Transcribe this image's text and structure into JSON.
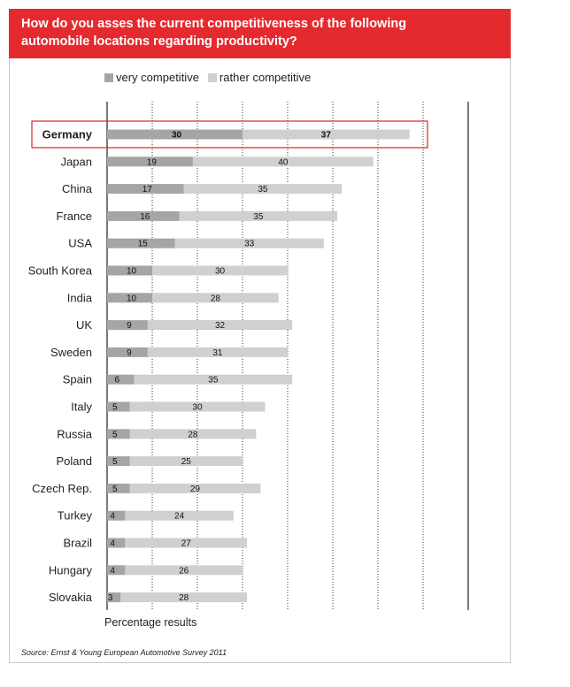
{
  "title_lines": [
    "How do you asses the current competitiveness of the following",
    "automobile locations regarding productivity?"
  ],
  "legend": [
    {
      "label": "very competitive",
      "color": "#a5a5a5"
    },
    {
      "label": "rather competitive",
      "color": "#d0d0d0"
    }
  ],
  "highlight_category": "Germany",
  "source": "Source: Ernst & Young European Automotive Survey 2011",
  "chart_data": {
    "type": "bar",
    "orientation": "horizontal",
    "stacked": true,
    "title": "How do you asses the current competitiveness of the following automobile locations regarding productivity?",
    "xlabel": "Percentage results",
    "categories": [
      "Germany",
      "Japan",
      "China",
      "France",
      "USA",
      "South Korea",
      "India",
      "UK",
      "Sweden",
      "Spain",
      "Italy",
      "Russia",
      "Poland",
      "Czech Rep.",
      "Turkey",
      "Brazil",
      "Hungary",
      "Slovakia"
    ],
    "series": [
      {
        "name": "very competitive",
        "color": "#a5a5a5",
        "values": [
          30,
          19,
          17,
          16,
          15,
          10,
          10,
          9,
          9,
          6,
          5,
          5,
          5,
          5,
          4,
          4,
          4,
          3
        ]
      },
      {
        "name": "rather competitive",
        "color": "#d0d0d0",
        "values": [
          37,
          40,
          35,
          35,
          33,
          30,
          28,
          32,
          31,
          35,
          30,
          28,
          25,
          29,
          24,
          27,
          26,
          28
        ]
      }
    ],
    "xlim": [
      0,
      80
    ],
    "grid": true,
    "legend_position": "top"
  }
}
